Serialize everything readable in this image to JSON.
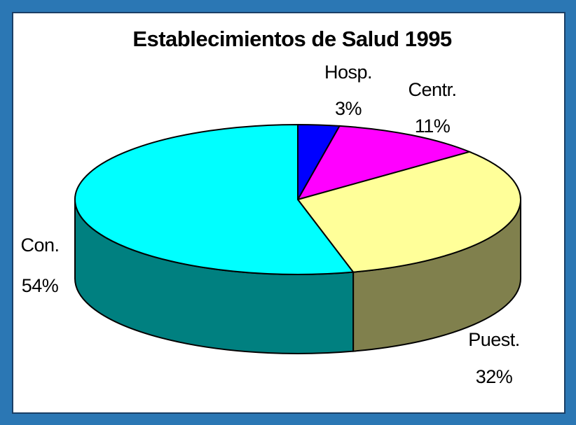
{
  "chart_data": {
    "type": "pie",
    "title": "Establecimientos de Salud 1995",
    "categories": [
      "Hosp.",
      "Centr.",
      "Puest.",
      "Con."
    ],
    "values": [
      3,
      11,
      32,
      54
    ],
    "value_labels": [
      "3%",
      "11%",
      "32%",
      "54%"
    ],
    "colors": [
      "#0000ff",
      "#ff00ff",
      "#ffff99",
      "#00ffff"
    ]
  }
}
